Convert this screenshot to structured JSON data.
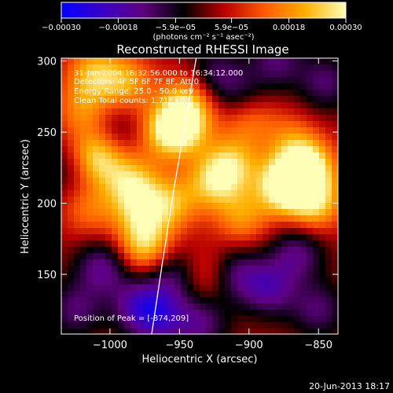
{
  "chart_data": {
    "type": "heatmap",
    "title": "Reconstructed RHESSI Image",
    "xlabel": "Heliocentric X (arcsec)",
    "ylabel": "Heliocentric Y (arcsec)",
    "xlim": [
      -1035,
      -836
    ],
    "ylim": [
      108,
      302
    ],
    "x_ticks": [
      -1000,
      -950,
      -900,
      -850
    ],
    "x_tick_labels": [
      "−1000",
      "−950",
      "−900",
      "−850"
    ],
    "y_ticks": [
      150,
      200,
      250,
      300
    ],
    "y_tick_labels": [
      "150",
      "200",
      "250",
      "300"
    ],
    "colorbar": {
      "range": [
        -0.0003,
        0.0003
      ],
      "ticks": [
        -0.0003,
        -0.00018,
        -5.9e-05,
        5.9e-05,
        0.00018,
        0.0003
      ],
      "tick_labels": [
        "−0.00030",
        "−0.00018",
        "−5.9e−05",
        "5.9e−05",
        "0.00018",
        "0.00030"
      ],
      "units": "(photons cm⁻² s⁻¹ asec⁻²)",
      "colors": [
        "#0000ff",
        "#3a00c8",
        "#600080",
        "#000000",
        "#b80000",
        "#ff5a00",
        "#ffb000",
        "#ffffb8"
      ]
    },
    "annotations": {
      "time": "31-Jan-2004 16:32:56.000 to 16:34:12.000",
      "detectors": "Detectors: 4F 5F 6F 7F 8F, Att 0",
      "energy": "Energy Range: 25.0 - 50.0 keV",
      "clean": "Clean    Total counts: 1.71E+03",
      "peak": "Position of Peak = [-874,209]"
    },
    "limb_curve": {
      "points": [
        [
          -970,
          108
        ],
        [
          -962,
          160
        ],
        [
          -954,
          210
        ],
        [
          -947,
          250
        ],
        [
          -938,
          302
        ]
      ]
    },
    "grid": false,
    "blobs": [
      {
        "x": -1012,
        "y": 292,
        "v": 0.6
      },
      {
        "x": -1010,
        "y": 232,
        "v": 0.85
      },
      {
        "x": -1020,
        "y": 265,
        "v": 0.45
      },
      {
        "x": -1015,
        "y": 195,
        "v": 0.4
      },
      {
        "x": -988,
        "y": 285,
        "v": 0.55
      },
      {
        "x": -985,
        "y": 215,
        "v": 0.65
      },
      {
        "x": -978,
        "y": 195,
        "v": 0.55
      },
      {
        "x": -975,
        "y": 170,
        "v": 0.75
      },
      {
        "x": -960,
        "y": 250,
        "v": 0.55
      },
      {
        "x": -948,
        "y": 255,
        "v": 0.85
      },
      {
        "x": -942,
        "y": 275,
        "v": 0.5
      },
      {
        "x": -955,
        "y": 200,
        "v": 0.55
      },
      {
        "x": -925,
        "y": 215,
        "v": 0.65
      },
      {
        "x": -912,
        "y": 228,
        "v": 0.6
      },
      {
        "x": -905,
        "y": 190,
        "v": 0.5
      },
      {
        "x": -900,
        "y": 260,
        "v": 0.45
      },
      {
        "x": -875,
        "y": 212,
        "v": 1.0
      },
      {
        "x": -858,
        "y": 225,
        "v": 0.95
      },
      {
        "x": -852,
        "y": 200,
        "v": 0.7
      },
      {
        "x": -870,
        "y": 245,
        "v": 0.35
      },
      {
        "x": -930,
        "y": 150,
        "v": 0.35
      },
      {
        "x": -1005,
        "y": 155,
        "v": -0.55
      },
      {
        "x": -1025,
        "y": 125,
        "v": -0.45
      },
      {
        "x": -980,
        "y": 128,
        "v": -0.5
      },
      {
        "x": -955,
        "y": 150,
        "v": -0.45
      },
      {
        "x": -965,
        "y": 120,
        "v": -0.6
      },
      {
        "x": -935,
        "y": 115,
        "v": -0.5
      },
      {
        "x": -910,
        "y": 150,
        "v": -0.5
      },
      {
        "x": -885,
        "y": 140,
        "v": -0.55
      },
      {
        "x": -865,
        "y": 165,
        "v": -0.5
      },
      {
        "x": -850,
        "y": 125,
        "v": -0.45
      },
      {
        "x": -925,
        "y": 290,
        "v": -0.45
      },
      {
        "x": -905,
        "y": 275,
        "v": -0.35
      },
      {
        "x": -880,
        "y": 300,
        "v": -0.45
      },
      {
        "x": -845,
        "y": 285,
        "v": -0.45
      },
      {
        "x": -1028,
        "y": 225,
        "v": -0.3
      },
      {
        "x": -995,
        "y": 250,
        "v": -0.25
      }
    ]
  },
  "footer": {
    "timestamp": "20-Jun-2013 18:17"
  }
}
